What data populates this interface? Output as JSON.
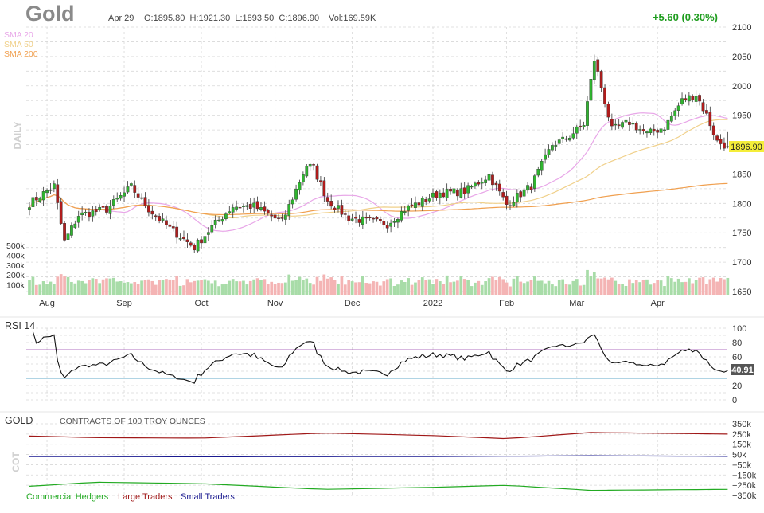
{
  "header": {
    "symbol": "Gold",
    "date": "Apr 29",
    "ohlc": "O:1895.80  H:1921.30  L:1893.50  C:1896.90",
    "volume": "Vol:169.59K",
    "change": "+5.60 (0.30%)",
    "change_color": "#1f9d1f"
  },
  "legend": {
    "sma20": {
      "label": "SMA 20",
      "color": "#e8a6e8"
    },
    "sma50": {
      "label": "SMA 50",
      "color": "#f0d08a"
    },
    "sma200": {
      "label": "SMA 200",
      "color": "#f0a050"
    },
    "period_label": "DAILY"
  },
  "price_panel": {
    "last_price_label": "1896.90",
    "y_ticks": [
      "2100",
      "2050",
      "2000",
      "1950",
      "1900",
      "1850",
      "1800",
      "1750",
      "1700",
      "1650"
    ],
    "volume_ticks": [
      "500k",
      "400k",
      "300k",
      "200k",
      "100k"
    ],
    "x_ticks": [
      "Aug",
      "Sep",
      "Oct",
      "Nov",
      "Dec",
      "2022",
      "Feb",
      "Mar",
      "Apr"
    ]
  },
  "rsi_panel": {
    "title": "RSI 14",
    "value_label": "40.91",
    "y_ticks": [
      "100",
      "80",
      "60",
      "40",
      "20",
      "0"
    ],
    "overbought_color": "#b070c0",
    "oversold_color": "#60a8c8"
  },
  "cot_panel": {
    "title": "GOLD",
    "subtitle": "CONTRACTS OF 100 TROY OUNCES",
    "side_label": "COT",
    "y_ticks": [
      "350k",
      "250k",
      "150k",
      "50k",
      "−50k",
      "−150k",
      "−250k",
      "−350k"
    ],
    "legend": [
      {
        "label": "Commercial Hedgers",
        "color": "#22aa22"
      },
      {
        "label": "Large Traders",
        "color": "#a01818"
      },
      {
        "label": "Small Traders",
        "color": "#1a1a90"
      }
    ]
  },
  "colors": {
    "up_candle": "#2fb52f",
    "down_candle": "#b01c1c",
    "up_volume": "#a8dca8",
    "down_volume": "#f4b4b4",
    "grid": "#d8d8d8",
    "price_label_bg": "#f5ee3a"
  },
  "chart_data": [
    {
      "type": "candlestick",
      "title": "Gold",
      "ylim": [
        1650,
        2100
      ],
      "x_range": [
        "2021-07-26",
        "2022-04-29"
      ],
      "month_ticks": [
        {
          "label": "Aug",
          "date": "2021-08-02"
        },
        {
          "label": "Sep",
          "date": "2021-09-01"
        },
        {
          "label": "Oct",
          "date": "2021-10-01"
        },
        {
          "label": "Nov",
          "date": "2021-11-01"
        },
        {
          "label": "Dec",
          "date": "2021-12-01"
        },
        {
          "label": "2022",
          "date": "2022-01-03"
        },
        {
          "label": "Feb",
          "date": "2022-02-01"
        },
        {
          "label": "Mar",
          "date": "2022-03-01"
        },
        {
          "label": "Apr",
          "date": "2022-04-01"
        }
      ],
      "close_anchors": [
        [
          "2021-07-26",
          1800
        ],
        [
          "2021-08-04",
          1830
        ],
        [
          "2021-08-06",
          1765
        ],
        [
          "2021-08-09",
          1735
        ],
        [
          "2021-08-13",
          1780
        ],
        [
          "2021-08-25",
          1790
        ],
        [
          "2021-09-03",
          1828
        ],
        [
          "2021-09-10",
          1790
        ],
        [
          "2021-09-17",
          1762
        ],
        [
          "2021-09-29",
          1725
        ],
        [
          "2021-10-06",
          1760
        ],
        [
          "2021-10-14",
          1795
        ],
        [
          "2021-10-22",
          1795
        ],
        [
          "2021-11-03",
          1768
        ],
        [
          "2021-11-12",
          1865
        ],
        [
          "2021-11-16",
          1860
        ],
        [
          "2021-11-22",
          1805
        ],
        [
          "2021-11-30",
          1775
        ],
        [
          "2021-12-15",
          1765
        ],
        [
          "2021-12-22",
          1790
        ],
        [
          "2022-01-05",
          1818
        ],
        [
          "2022-01-14",
          1820
        ],
        [
          "2022-01-25",
          1848
        ],
        [
          "2022-02-01",
          1798
        ],
        [
          "2022-02-10",
          1830
        ],
        [
          "2022-02-18",
          1900
        ],
        [
          "2022-02-24",
          1910
        ],
        [
          "2022-03-03",
          1935
        ],
        [
          "2022-03-08",
          2045
        ],
        [
          "2022-03-10",
          1998
        ],
        [
          "2022-03-15",
          1925
        ],
        [
          "2022-03-22",
          1938
        ],
        [
          "2022-03-29",
          1918
        ],
        [
          "2022-04-05",
          1930
        ],
        [
          "2022-04-12",
          1975
        ],
        [
          "2022-04-18",
          1985
        ],
        [
          "2022-04-21",
          1950
        ],
        [
          "2022-04-26",
          1905
        ],
        [
          "2022-04-29",
          1896.9
        ]
      ],
      "last_bar": {
        "date": "2022-04-29",
        "open": 1895.8,
        "high": 1921.3,
        "low": 1893.5,
        "close": 1896.9,
        "volume": 169590
      },
      "series": [
        {
          "name": "SMA 20",
          "key": "sma20"
        },
        {
          "name": "SMA 50",
          "key": "sma50"
        },
        {
          "name": "SMA 200",
          "key": "sma200"
        }
      ],
      "volume_ticks": [
        100000,
        200000,
        300000,
        400000,
        500000
      ]
    },
    {
      "type": "line",
      "title": "RSI 14",
      "ylim": [
        0,
        100
      ],
      "overbought": 70,
      "oversold": 30,
      "last_value": 40.91
    },
    {
      "type": "line",
      "title": "GOLD",
      "subtitle": "CONTRACTS OF 100 TROY OUNCES",
      "ylim": [
        -350000,
        350000
      ],
      "series": [
        {
          "name": "Large Traders",
          "anchors": [
            [
              "2021-07-26",
              230000
            ],
            [
              "2021-08-20",
              215000
            ],
            [
              "2021-10-01",
              210000
            ],
            [
              "2021-11-19",
              260000
            ],
            [
              "2022-01-03",
              235000
            ],
            [
              "2022-02-01",
              205000
            ],
            [
              "2022-03-07",
              265000
            ],
            [
              "2022-04-29",
              250000
            ]
          ]
        },
        {
          "name": "Small Traders",
          "anchors": [
            [
              "2021-07-26",
              30000
            ],
            [
              "2021-10-01",
              28000
            ],
            [
              "2022-01-03",
              30000
            ],
            [
              "2022-03-07",
              38000
            ],
            [
              "2022-04-29",
              32000
            ]
          ]
        },
        {
          "name": "Commercial Hedgers",
          "anchors": [
            [
              "2021-07-26",
              -260000
            ],
            [
              "2021-08-20",
              -220000
            ],
            [
              "2021-10-01",
              -235000
            ],
            [
              "2021-11-19",
              -290000
            ],
            [
              "2022-01-03",
              -270000
            ],
            [
              "2022-02-01",
              -250000
            ],
            [
              "2022-03-07",
              -300000
            ],
            [
              "2022-04-29",
              -290000
            ]
          ]
        }
      ]
    }
  ]
}
